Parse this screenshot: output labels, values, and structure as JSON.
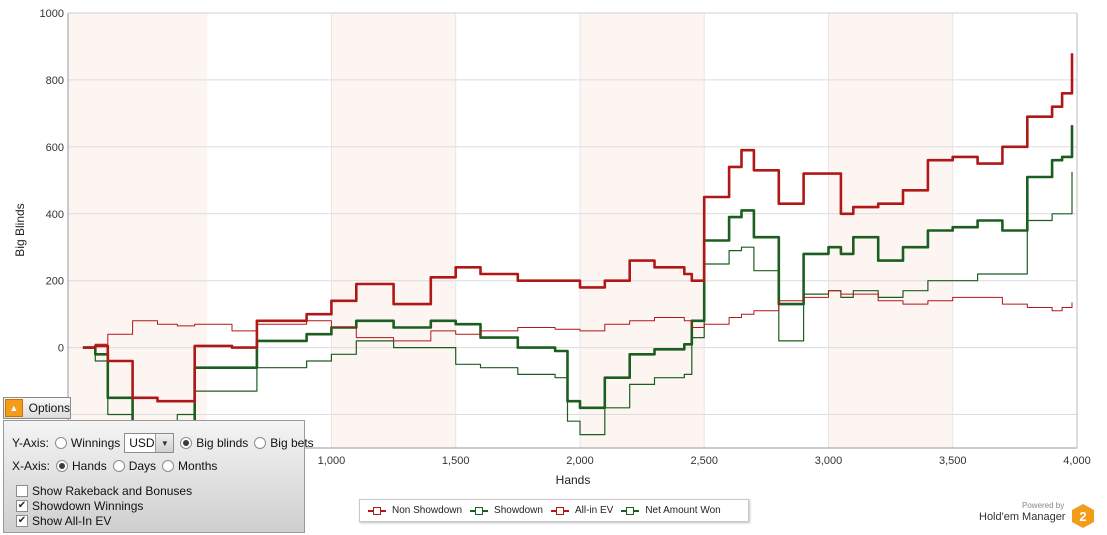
{
  "chart_data": {
    "type": "line",
    "xlabel": "Hands",
    "ylabel": "Big Blinds",
    "xlim": [
      -60,
      4000
    ],
    "ylim": [
      -300,
      1000
    ],
    "x_ticks": [
      {
        "v": 1000,
        "label": "1,000"
      },
      {
        "v": 1500,
        "label": "1,500"
      },
      {
        "v": 2000,
        "label": "2,000"
      },
      {
        "v": 2500,
        "label": "2,500"
      },
      {
        "v": 3000,
        "label": "3,000"
      },
      {
        "v": 3500,
        "label": "3,500"
      },
      {
        "v": 4000,
        "label": "4,000"
      }
    ],
    "y_ticks": [
      {
        "v": 1000,
        "label": "1000"
      },
      {
        "v": 800,
        "label": "800"
      },
      {
        "v": 600,
        "label": "600"
      },
      {
        "v": 400,
        "label": "400"
      },
      {
        "v": 200,
        "label": "200"
      },
      {
        "v": 0,
        "label": "0"
      },
      {
        "v": -200,
        "label": "-200"
      }
    ],
    "series": [
      {
        "name": "Non Showdown",
        "color": "#b01818",
        "width": 2.6,
        "points": [
          [
            0,
            0
          ],
          [
            50,
            5
          ],
          [
            100,
            -40
          ],
          [
            200,
            -150
          ],
          [
            300,
            -160
          ],
          [
            380,
            -160
          ],
          [
            450,
            5
          ],
          [
            600,
            0
          ],
          [
            700,
            80
          ],
          [
            900,
            100
          ],
          [
            1000,
            140
          ],
          [
            1100,
            190
          ],
          [
            1250,
            130
          ],
          [
            1400,
            210
          ],
          [
            1500,
            240
          ],
          [
            1600,
            220
          ],
          [
            1750,
            200
          ],
          [
            1900,
            200
          ],
          [
            2000,
            180
          ],
          [
            2100,
            200
          ],
          [
            2200,
            260
          ],
          [
            2300,
            240
          ],
          [
            2420,
            220
          ],
          [
            2450,
            200
          ],
          [
            2500,
            450
          ],
          [
            2600,
            540
          ],
          [
            2650,
            590
          ],
          [
            2700,
            530
          ],
          [
            2800,
            430
          ],
          [
            2900,
            520
          ],
          [
            3000,
            520
          ],
          [
            3050,
            400
          ],
          [
            3100,
            420
          ],
          [
            3200,
            430
          ],
          [
            3300,
            470
          ],
          [
            3400,
            560
          ],
          [
            3500,
            570
          ],
          [
            3600,
            550
          ],
          [
            3700,
            600
          ],
          [
            3800,
            690
          ],
          [
            3900,
            720
          ],
          [
            3940,
            760
          ],
          [
            3980,
            880
          ]
        ]
      },
      {
        "name": "Showdown",
        "color": "#1b5e20",
        "width": 1.2,
        "points": [
          [
            0,
            0
          ],
          [
            50,
            -40
          ],
          [
            100,
            -200
          ],
          [
            200,
            -280
          ],
          [
            300,
            -280
          ],
          [
            380,
            -200
          ],
          [
            450,
            -130
          ],
          [
            600,
            -130
          ],
          [
            700,
            -60
          ],
          [
            900,
            -40
          ],
          [
            1000,
            -20
          ],
          [
            1100,
            20
          ],
          [
            1250,
            0
          ],
          [
            1400,
            0
          ],
          [
            1500,
            -50
          ],
          [
            1600,
            -60
          ],
          [
            1750,
            -80
          ],
          [
            1900,
            -90
          ],
          [
            1950,
            -220
          ],
          [
            2000,
            -260
          ],
          [
            2100,
            -180
          ],
          [
            2200,
            -110
          ],
          [
            2300,
            -90
          ],
          [
            2420,
            -80
          ],
          [
            2450,
            30
          ],
          [
            2500,
            250
          ],
          [
            2600,
            290
          ],
          [
            2650,
            300
          ],
          [
            2700,
            230
          ],
          [
            2800,
            20
          ],
          [
            2900,
            160
          ],
          [
            3000,
            170
          ],
          [
            3050,
            150
          ],
          [
            3100,
            170
          ],
          [
            3200,
            150
          ],
          [
            3300,
            170
          ],
          [
            3400,
            200
          ],
          [
            3500,
            200
          ],
          [
            3600,
            220
          ],
          [
            3700,
            220
          ],
          [
            3800,
            380
          ],
          [
            3900,
            400
          ],
          [
            3940,
            400
          ],
          [
            3980,
            525
          ]
        ]
      },
      {
        "name": "All-in EV",
        "color": "#b01818",
        "width": 1.0,
        "points": [
          [
            0,
            0
          ],
          [
            50,
            10
          ],
          [
            100,
            40
          ],
          [
            200,
            80
          ],
          [
            300,
            70
          ],
          [
            380,
            65
          ],
          [
            450,
            70
          ],
          [
            600,
            50
          ],
          [
            700,
            70
          ],
          [
            900,
            80
          ],
          [
            1000,
            60
          ],
          [
            1100,
            30
          ],
          [
            1250,
            20
          ],
          [
            1400,
            50
          ],
          [
            1500,
            40
          ],
          [
            1600,
            50
          ],
          [
            1750,
            60
          ],
          [
            1900,
            55
          ],
          [
            2000,
            50
          ],
          [
            2100,
            70
          ],
          [
            2200,
            80
          ],
          [
            2300,
            90
          ],
          [
            2420,
            80
          ],
          [
            2450,
            60
          ],
          [
            2500,
            70
          ],
          [
            2600,
            90
          ],
          [
            2650,
            100
          ],
          [
            2700,
            110
          ],
          [
            2800,
            140
          ],
          [
            2900,
            150
          ],
          [
            3000,
            170
          ],
          [
            3050,
            160
          ],
          [
            3100,
            160
          ],
          [
            3200,
            140
          ],
          [
            3300,
            130
          ],
          [
            3400,
            140
          ],
          [
            3500,
            150
          ],
          [
            3600,
            150
          ],
          [
            3700,
            130
          ],
          [
            3800,
            120
          ],
          [
            3900,
            110
          ],
          [
            3940,
            120
          ],
          [
            3980,
            135
          ]
        ]
      },
      {
        "name": "Net Amount Won",
        "color": "#1b5e20",
        "width": 2.6,
        "points": [
          [
            0,
            0
          ],
          [
            50,
            -20
          ],
          [
            100,
            -150
          ],
          [
            200,
            -240
          ],
          [
            300,
            -270
          ],
          [
            380,
            -260
          ],
          [
            450,
            -60
          ],
          [
            600,
            -60
          ],
          [
            700,
            20
          ],
          [
            900,
            40
          ],
          [
            1000,
            60
          ],
          [
            1100,
            80
          ],
          [
            1250,
            60
          ],
          [
            1400,
            80
          ],
          [
            1500,
            70
          ],
          [
            1600,
            30
          ],
          [
            1750,
            0
          ],
          [
            1900,
            -10
          ],
          [
            1950,
            -160
          ],
          [
            2000,
            -180
          ],
          [
            2100,
            -90
          ],
          [
            2200,
            -20
          ],
          [
            2300,
            -5
          ],
          [
            2420,
            10
          ],
          [
            2450,
            80
          ],
          [
            2500,
            320
          ],
          [
            2600,
            390
          ],
          [
            2650,
            410
          ],
          [
            2700,
            330
          ],
          [
            2800,
            130
          ],
          [
            2900,
            280
          ],
          [
            3000,
            300
          ],
          [
            3050,
            280
          ],
          [
            3100,
            330
          ],
          [
            3200,
            260
          ],
          [
            3300,
            300
          ],
          [
            3400,
            350
          ],
          [
            3500,
            360
          ],
          [
            3600,
            380
          ],
          [
            3700,
            350
          ],
          [
            3800,
            510
          ],
          [
            3900,
            560
          ],
          [
            3940,
            570
          ],
          [
            3980,
            665
          ]
        ]
      }
    ],
    "legend": {
      "placement": "bottom-center"
    }
  },
  "options": {
    "toggle_label": "Options",
    "y_axis_label": "Y-Axis:",
    "y_winnings_label": "Winnings",
    "currency_value": "USD",
    "y_big_blinds_label": "Big blinds",
    "y_big_bets_label": "Big bets",
    "x_axis_label": "X-Axis:",
    "x_hands_label": "Hands",
    "x_days_label": "Days",
    "x_months_label": "Months",
    "show_rakeback_label": "Show Rakeback and Bonuses",
    "showdown_winnings_label": "Showdown Winnings",
    "show_allin_ev_label": "Show All-In EV",
    "y_axis_selected": "Big blinds",
    "x_axis_selected": "Hands",
    "show_rakeback_checked": false,
    "showdown_winnings_checked": true,
    "show_allin_ev_checked": true
  },
  "legend_labels": [
    "Non Showdown",
    "Showdown",
    "All-in EV",
    "Net Amount Won"
  ],
  "branding": {
    "powered_by": "Powered by",
    "product": "Hold'em Manager",
    "logo_text": "2"
  }
}
